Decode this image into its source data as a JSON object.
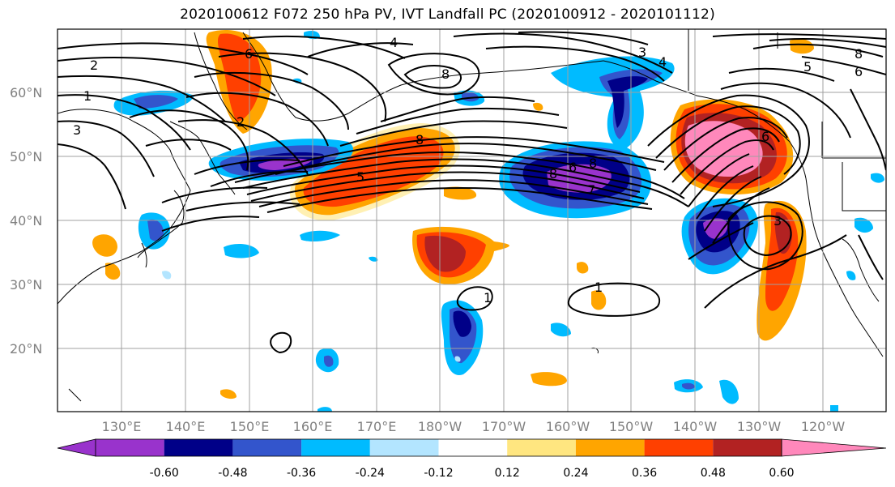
{
  "title": "2020100612 F072 250 hPa PV, IVT Landfall PC (2020100912 - 2020101112)",
  "lat_labels": [
    "60°N",
    "50°N",
    "40°N",
    "30°N",
    "20°N"
  ],
  "lon_labels": [
    "130°E",
    "140°E",
    "150°E",
    "160°E",
    "170°E",
    "180°W",
    "170°W",
    "160°W",
    "150°W",
    "140°W",
    "130°W",
    "120°W"
  ],
  "colorbar": {
    "colors": [
      "#9933cc",
      "#000088",
      "#3355cc",
      "#00bbff",
      "#b3e5ff",
      "#ffffff",
      "#ffe680",
      "#ffa500",
      "#ff4000",
      "#b22222",
      "#ff88bb"
    ],
    "tick_labels": [
      "-0.60",
      "-0.48",
      "-0.36",
      "-0.24",
      "-0.12",
      "0.12",
      "0.24",
      "0.36",
      "0.48",
      "0.60"
    ]
  },
  "contour_labels": [
    "2",
    "1",
    "3",
    "2",
    "6",
    "4",
    "3",
    "4",
    "8",
    "8",
    "8",
    "6",
    "8",
    "7",
    "6",
    "5",
    "3",
    "8",
    "5",
    "6",
    "1",
    "1"
  ]
}
